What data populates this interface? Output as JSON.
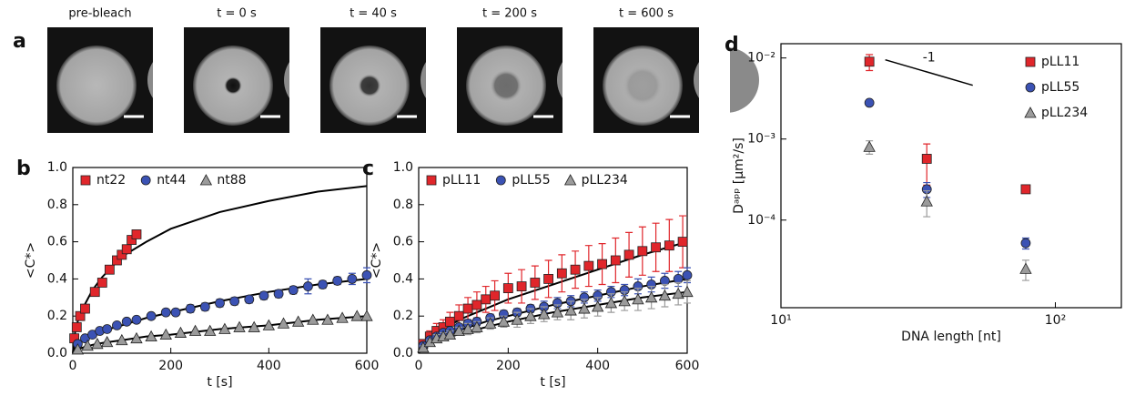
{
  "panel_a": {
    "panel_label": "a",
    "frames": [
      "pre-bleach",
      "t = 0 s",
      "t = 40 s",
      "t = 200 s",
      "t = 600 s"
    ]
  },
  "chart_data": [
    {
      "type": "scatter",
      "panel_label": "b",
      "xlabel": "t [s]",
      "ylabel": "<C*>",
      "legend": "top-left",
      "xlim": [
        0,
        600
      ],
      "ylim": [
        0,
        1
      ],
      "xticks": [
        0,
        200,
        400,
        600
      ],
      "yticks": [
        {
          "value": 0,
          "label": "0.0"
        },
        0.2,
        0.4,
        0.6,
        0.8,
        {
          "value": 1,
          "label": "1.0"
        }
      ],
      "series": [
        {
          "name": "nt22",
          "color": "#e0262b",
          "marker": "square",
          "x": [
            3,
            8,
            15,
            25,
            45,
            60,
            75,
            90,
            100,
            110,
            120,
            130
          ],
          "values": [
            0.08,
            0.14,
            0.2,
            0.24,
            0.33,
            0.38,
            0.45,
            0.5,
            0.53,
            0.56,
            0.61,
            0.64
          ]
        },
        {
          "name": "nt44",
          "color": "#3b52b4",
          "marker": "circle",
          "x": [
            10,
            25,
            40,
            55,
            70,
            90,
            110,
            130,
            160,
            190,
            210,
            240,
            270,
            300,
            330,
            360,
            390,
            420,
            450,
            480,
            510,
            540,
            570,
            600
          ],
          "values": [
            0.05,
            0.08,
            0.1,
            0.12,
            0.13,
            0.15,
            0.17,
            0.18,
            0.2,
            0.22,
            0.22,
            0.24,
            0.25,
            0.27,
            0.28,
            0.29,
            0.31,
            0.32,
            0.34,
            0.36,
            0.37,
            0.39,
            0.4,
            0.42
          ],
          "errors": [
            0.01,
            0.01,
            0.01,
            0.01,
            0.01,
            0.01,
            0.01,
            0.01,
            0.01,
            0.01,
            0.01,
            0.02,
            0.02,
            0.02,
            0.02,
            0.02,
            0.02,
            0.02,
            0.02,
            0.04,
            0.02,
            0.02,
            0.03,
            0.04
          ]
        },
        {
          "name": "nt88",
          "color": "#9b9b9b",
          "marker": "triangle",
          "x": [
            10,
            30,
            50,
            70,
            100,
            130,
            160,
            190,
            220,
            250,
            280,
            310,
            340,
            370,
            400,
            430,
            460,
            490,
            520,
            550,
            580,
            600
          ],
          "values": [
            0.02,
            0.04,
            0.05,
            0.06,
            0.07,
            0.08,
            0.09,
            0.1,
            0.11,
            0.12,
            0.12,
            0.13,
            0.14,
            0.14,
            0.15,
            0.16,
            0.17,
            0.18,
            0.18,
            0.19,
            0.2,
            0.2
          ]
        }
      ],
      "fits": [
        {
          "x": [
            0,
            5,
            10,
            20,
            40,
            60,
            100,
            150,
            200,
            300,
            400,
            500,
            600
          ],
          "values": [
            0,
            0.12,
            0.17,
            0.24,
            0.34,
            0.41,
            0.52,
            0.6,
            0.67,
            0.76,
            0.82,
            0.87,
            0.9
          ]
        },
        {
          "x": [
            0,
            5,
            10,
            20,
            40,
            60,
            100,
            150,
            200,
            300,
            400,
            500,
            600
          ],
          "values": [
            0,
            0.03,
            0.05,
            0.07,
            0.1,
            0.12,
            0.15,
            0.19,
            0.22,
            0.28,
            0.33,
            0.37,
            0.4
          ]
        },
        {
          "x": [
            0,
            5,
            10,
            20,
            40,
            60,
            100,
            150,
            200,
            300,
            400,
            500,
            600
          ],
          "values": [
            0,
            0.015,
            0.02,
            0.03,
            0.045,
            0.055,
            0.07,
            0.09,
            0.1,
            0.13,
            0.15,
            0.18,
            0.2
          ]
        }
      ]
    },
    {
      "type": "scatter",
      "panel_label": "c",
      "xlabel": "t [s]",
      "ylabel": "<C*>",
      "legend": "top-left",
      "xlim": [
        0,
        600
      ],
      "ylim": [
        0,
        1
      ],
      "xticks": [
        0,
        200,
        400,
        600
      ],
      "yticks": [
        {
          "value": 0,
          "label": "0.0"
        },
        0.2,
        0.4,
        0.6,
        0.8,
        {
          "value": 1,
          "label": "1.0"
        }
      ],
      "series": [
        {
          "name": "pLL11",
          "color": "#e0262b",
          "marker": "square",
          "x": [
            10,
            25,
            40,
            55,
            70,
            90,
            110,
            130,
            150,
            170,
            200,
            230,
            260,
            290,
            320,
            350,
            380,
            410,
            440,
            470,
            500,
            530,
            560,
            590
          ],
          "values": [
            0.05,
            0.09,
            0.12,
            0.14,
            0.17,
            0.2,
            0.24,
            0.26,
            0.29,
            0.31,
            0.35,
            0.36,
            0.38,
            0.4,
            0.43,
            0.45,
            0.47,
            0.48,
            0.5,
            0.53,
            0.55,
            0.57,
            0.58,
            0.6
          ],
          "errors": [
            0.02,
            0.03,
            0.04,
            0.04,
            0.05,
            0.06,
            0.06,
            0.07,
            0.07,
            0.08,
            0.08,
            0.09,
            0.09,
            0.1,
            0.1,
            0.1,
            0.11,
            0.11,
            0.12,
            0.12,
            0.13,
            0.13,
            0.14,
            0.14
          ]
        },
        {
          "name": "pLL55",
          "color": "#3b52b4",
          "marker": "circle",
          "x": [
            10,
            25,
            40,
            55,
            70,
            90,
            110,
            130,
            160,
            190,
            220,
            250,
            280,
            310,
            340,
            370,
            400,
            430,
            460,
            490,
            520,
            550,
            580,
            600
          ],
          "values": [
            0.04,
            0.07,
            0.09,
            0.11,
            0.12,
            0.14,
            0.16,
            0.17,
            0.19,
            0.21,
            0.22,
            0.24,
            0.25,
            0.27,
            0.28,
            0.3,
            0.31,
            0.33,
            0.34,
            0.36,
            0.37,
            0.39,
            0.4,
            0.42
          ],
          "errors": [
            0.01,
            0.01,
            0.01,
            0.01,
            0.01,
            0.01,
            0.02,
            0.02,
            0.02,
            0.02,
            0.02,
            0.02,
            0.03,
            0.03,
            0.03,
            0.03,
            0.03,
            0.03,
            0.03,
            0.04,
            0.04,
            0.04,
            0.04,
            0.04
          ]
        },
        {
          "name": "pLL234",
          "color": "#9b9b9b",
          "marker": "triangle",
          "x": [
            10,
            25,
            40,
            55,
            70,
            90,
            110,
            130,
            160,
            190,
            220,
            250,
            280,
            310,
            340,
            370,
            400,
            430,
            460,
            490,
            520,
            550,
            580,
            600
          ],
          "values": [
            0.03,
            0.06,
            0.08,
            0.09,
            0.1,
            0.12,
            0.13,
            0.14,
            0.16,
            0.17,
            0.18,
            0.2,
            0.21,
            0.22,
            0.23,
            0.24,
            0.25,
            0.27,
            0.28,
            0.29,
            0.3,
            0.31,
            0.32,
            0.33
          ],
          "errors": [
            0.01,
            0.01,
            0.02,
            0.02,
            0.02,
            0.02,
            0.03,
            0.03,
            0.03,
            0.03,
            0.04,
            0.04,
            0.04,
            0.04,
            0.05,
            0.05,
            0.05,
            0.05,
            0.05,
            0.06,
            0.06,
            0.06,
            0.06,
            0.06
          ]
        }
      ],
      "fits": [
        {
          "x": [
            0,
            5,
            10,
            20,
            40,
            60,
            100,
            150,
            200,
            300,
            400,
            500,
            600
          ],
          "values": [
            0,
            0.04,
            0.06,
            0.08,
            0.11,
            0.14,
            0.19,
            0.24,
            0.29,
            0.37,
            0.45,
            0.53,
            0.6
          ]
        },
        {
          "x": [
            0,
            5,
            10,
            20,
            40,
            60,
            100,
            150,
            200,
            300,
            400,
            500,
            600
          ],
          "values": [
            0,
            0.03,
            0.04,
            0.06,
            0.08,
            0.1,
            0.13,
            0.17,
            0.2,
            0.26,
            0.31,
            0.36,
            0.4
          ]
        },
        {
          "x": [
            0,
            5,
            10,
            20,
            40,
            60,
            100,
            150,
            200,
            300,
            400,
            500,
            600
          ],
          "values": [
            0,
            0.02,
            0.03,
            0.05,
            0.07,
            0.08,
            0.11,
            0.14,
            0.17,
            0.22,
            0.26,
            0.3,
            0.33
          ]
        }
      ]
    },
    {
      "type": "scatter",
      "panel_label": "d",
      "xlabel": "DNA length [nt]",
      "ylabel": "Dᵃᵖᵖ [μm²/s]",
      "legend": "top-right",
      "xscale": "log",
      "yscale": "log",
      "xlim": [
        10,
        174
      ],
      "ylim": [
        8.3e-06,
        0.015
      ],
      "xticks": [
        {
          "value": 10,
          "label": "10¹"
        },
        {
          "value": 100,
          "label": "10²"
        }
      ],
      "yticks": [
        {
          "value": 0.0001,
          "label": "10⁻⁴"
        },
        {
          "value": 0.001,
          "label": "10⁻³"
        },
        {
          "value": 0.01,
          "label": "10⁻²"
        }
      ],
      "series": [
        {
          "name": "pLL11",
          "color": "#e0262b",
          "marker": "square",
          "x": [
            21,
            34,
            78
          ],
          "values": [
            0.009,
            0.00057,
            0.00024
          ],
          "errors": [
            0.002,
            0.0003,
            2e-05
          ]
        },
        {
          "name": "pLL55",
          "color": "#3b52b4",
          "marker": "circle",
          "x": [
            21,
            34,
            78
          ],
          "values": [
            0.0028,
            0.00024,
            5.2e-05
          ],
          "errors": [
            0.0002,
            5e-05,
            8e-06
          ]
        },
        {
          "name": "pLL234",
          "color": "#9b9b9b",
          "marker": "triangle",
          "x": [
            21,
            34,
            78
          ],
          "values": [
            0.0008,
            0.00017,
            2.5e-05
          ],
          "errors": [
            0.00015,
            6e-05,
            7e-06
          ]
        }
      ],
      "guide": {
        "label": "-1",
        "x": [
          24,
          50
        ],
        "values": [
          0.0095,
          0.0046
        ]
      }
    }
  ]
}
